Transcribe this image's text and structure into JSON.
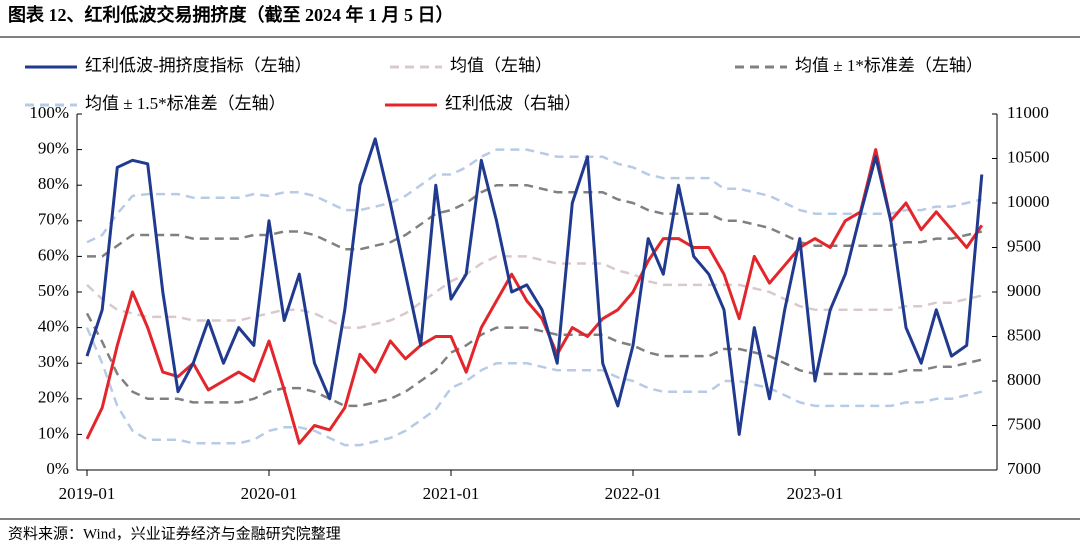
{
  "chart_data": {
    "type": "line",
    "title": "图表 12、红利低波交易拥挤度（截至 2024 年 1 月 5 日）",
    "source": "资料来源：Wind，兴业证券经济与金融研究院整理",
    "categories": [
      "2019-01",
      null,
      null,
      null,
      null,
      null,
      null,
      null,
      null,
      null,
      null,
      null,
      "2020-01",
      null,
      null,
      null,
      null,
      null,
      null,
      null,
      null,
      null,
      null,
      null,
      "2021-01",
      null,
      null,
      null,
      null,
      null,
      null,
      null,
      null,
      null,
      null,
      null,
      "2022-01",
      null,
      null,
      null,
      null,
      null,
      null,
      null,
      null,
      null,
      null,
      null,
      "2023-01",
      null,
      null,
      null,
      null,
      null,
      null,
      null,
      null,
      null,
      null,
      null
    ],
    "ylim": [
      0,
      100
    ],
    "yticks": [
      {
        "value": 0,
        "label": "0%"
      },
      {
        "value": 10,
        "label": "10%"
      },
      {
        "value": 20,
        "label": "20%"
      },
      {
        "value": 30,
        "label": "30%"
      },
      {
        "value": 40,
        "label": "40%"
      },
      {
        "value": 50,
        "label": "50%"
      },
      {
        "value": 60,
        "label": "60%"
      },
      {
        "value": 70,
        "label": "70%"
      },
      {
        "value": 80,
        "label": "80%"
      },
      {
        "value": 90,
        "label": "90%"
      },
      {
        "value": 100,
        "label": "100%"
      }
    ],
    "y2lim": [
      7000,
      11000
    ],
    "y2ticks": [
      7000,
      7500,
      8000,
      8500,
      9000,
      9500,
      10000,
      10500,
      11000
    ],
    "series": [
      {
        "name": "红利低波-拥挤度指标（左轴）",
        "color": "#1f3a8f",
        "dash": false,
        "values": [
          32,
          45,
          85,
          87,
          86,
          50,
          22,
          30,
          42,
          30,
          40,
          35,
          70,
          42,
          55,
          30,
          20,
          45,
          80,
          93,
          75,
          55,
          35,
          80,
          48,
          55,
          87,
          70,
          50,
          52,
          45,
          30,
          75,
          88,
          30,
          18,
          35,
          65,
          55,
          80,
          60,
          55,
          45,
          10,
          40,
          20,
          45,
          65,
          25,
          45,
          55,
          72,
          88,
          70,
          40,
          30,
          45,
          32,
          35,
          83
        ]
      },
      {
        "name": "均值（左轴）",
        "color": "#d9c9cc",
        "dash": true,
        "values": [
          52,
          48,
          45,
          44,
          43,
          43,
          43,
          42,
          42,
          42,
          42,
          43,
          44,
          45,
          45,
          44,
          42,
          40,
          40,
          41,
          42,
          44,
          47,
          50,
          53,
          55,
          58,
          60,
          60,
          60,
          59,
          58,
          58,
          58,
          58,
          56,
          55,
          53,
          52,
          52,
          52,
          52,
          52,
          52,
          51,
          50,
          48,
          46,
          45,
          45,
          45,
          45,
          45,
          45,
          46,
          46,
          47,
          47,
          48,
          49
        ]
      },
      {
        "name": "均值 ± 1*标准差（左轴）",
        "color": "#808080",
        "dash": true,
        "lines": [
          [
            60,
            60,
            63,
            66,
            66,
            66,
            66,
            65,
            65,
            65,
            65,
            66,
            66,
            67,
            67,
            66,
            64,
            62,
            62,
            63,
            64,
            66,
            69,
            72,
            73,
            75,
            78,
            80,
            80,
            80,
            79,
            78,
            78,
            78,
            78,
            76,
            75,
            73,
            72,
            72,
            72,
            72,
            70,
            70,
            69,
            68,
            66,
            64,
            63,
            63,
            63,
            63,
            63,
            63,
            64,
            64,
            65,
            65,
            66,
            67
          ],
          [
            44,
            36,
            27,
            22,
            20,
            20,
            20,
            19,
            19,
            19,
            19,
            20,
            22,
            23,
            23,
            22,
            20,
            18,
            18,
            19,
            20,
            22,
            25,
            28,
            33,
            35,
            38,
            40,
            40,
            40,
            39,
            38,
            38,
            38,
            38,
            36,
            35,
            33,
            32,
            32,
            32,
            32,
            34,
            34,
            33,
            32,
            30,
            28,
            27,
            27,
            27,
            27,
            27,
            27,
            28,
            28,
            29,
            29,
            30,
            31
          ]
        ]
      },
      {
        "name": "均值 ± 1.5*标准差（左轴）",
        "color": "#b8cbe6",
        "dash": true,
        "lines": [
          [
            64,
            66,
            72,
            77,
            77.5,
            77.5,
            77.5,
            76.5,
            76.5,
            76.5,
            76.5,
            77.5,
            77,
            78,
            78,
            77,
            75,
            73,
            73,
            74,
            75,
            77,
            80,
            83,
            83,
            85,
            88,
            90,
            90,
            90,
            89,
            88,
            88,
            88,
            88,
            86,
            85,
            83,
            82,
            82,
            82,
            82,
            79,
            79,
            78,
            77,
            75,
            73,
            72,
            72,
            72,
            72,
            72,
            72,
            73,
            73,
            74,
            74,
            75,
            76
          ],
          [
            40,
            30,
            18,
            11,
            8.5,
            8.5,
            8.5,
            7.5,
            7.5,
            7.5,
            7.5,
            8.5,
            11,
            12,
            12,
            11,
            9,
            7,
            7,
            8,
            9,
            11,
            14,
            17,
            23,
            25,
            28,
            30,
            30,
            30,
            29,
            28,
            28,
            28,
            28,
            26,
            25,
            23,
            22,
            22,
            22,
            22,
            25,
            25,
            24,
            23,
            21,
            19,
            18,
            18,
            18,
            18,
            18,
            18,
            19,
            19,
            20,
            20,
            21,
            22
          ]
        ]
      },
      {
        "name": "红利低波（右轴）",
        "color": "#e3262b",
        "dash": false,
        "axis": "y2",
        "values": [
          7350,
          7700,
          8400,
          9000,
          8600,
          8100,
          8050,
          8200,
          7900,
          8000,
          8100,
          8000,
          8450,
          7900,
          7300,
          7500,
          7450,
          7700,
          8300,
          8100,
          8450,
          8250,
          8400,
          8500,
          8500,
          8100,
          8600,
          8900,
          9200,
          8900,
          8700,
          8300,
          8600,
          8500,
          8700,
          8800,
          9000,
          9350,
          9600,
          9600,
          9500,
          9500,
          9200,
          8700,
          9400,
          9100,
          9300,
          9500,
          9600,
          9500,
          9800,
          9900,
          10600,
          9800,
          10000,
          9700,
          9900,
          9700,
          9500,
          9750
        ]
      }
    ]
  }
}
